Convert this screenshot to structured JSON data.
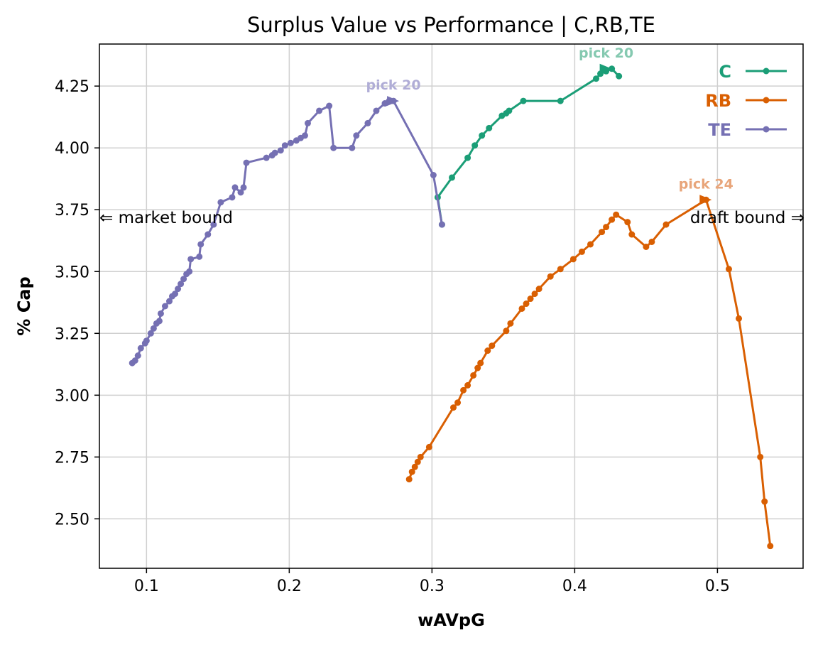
{
  "chart_data": {
    "type": "line",
    "title": "Surplus Value vs Performance | C,RB,TE",
    "xlabel": "wAVpG",
    "ylabel": "% Cap",
    "xlim": [
      0.067,
      0.56
    ],
    "ylim": [
      2.3,
      4.42
    ],
    "xticks": [
      0.1,
      0.2,
      0.3,
      0.4,
      0.5
    ],
    "xtick_labels": [
      "0.1",
      "0.2",
      "0.3",
      "0.4",
      "0.5"
    ],
    "yticks": [
      2.5,
      2.75,
      3.0,
      3.25,
      3.5,
      3.75,
      4.0,
      4.25
    ],
    "ytick_labels": [
      "2.50",
      "2.75",
      "3.00",
      "3.25",
      "3.50",
      "3.75",
      "4.00",
      "4.25"
    ],
    "grid": true,
    "legend_position": "top-right",
    "left_bound_label": "⇐ market bound",
    "right_bound_label": "draft bound ⇒",
    "series": [
      {
        "name": "C",
        "color": "#1b9e77",
        "x": [
          0.307,
          0.304,
          0.314,
          0.325,
          0.33,
          0.335,
          0.34,
          0.349,
          0.352,
          0.354,
          0.364,
          0.39,
          0.415,
          0.418,
          0.422,
          0.426,
          0.431
        ],
        "y": [
          3.69,
          3.8,
          3.88,
          3.96,
          4.01,
          4.05,
          4.08,
          4.13,
          4.14,
          4.15,
          4.19,
          4.19,
          4.28,
          4.3,
          4.31,
          4.32,
          4.29
        ],
        "pick_label": "pick 20",
        "pick_x": 0.422,
        "pick_y": 4.32
      },
      {
        "name": "RB",
        "color": "#d95f02",
        "x": [
          0.284,
          0.286,
          0.288,
          0.29,
          0.292,
          0.298,
          0.315,
          0.318,
          0.322,
          0.325,
          0.329,
          0.332,
          0.334,
          0.339,
          0.342,
          0.352,
          0.355,
          0.363,
          0.366,
          0.369,
          0.372,
          0.375,
          0.383,
          0.39,
          0.399,
          0.405,
          0.411,
          0.419,
          0.422,
          0.426,
          0.429,
          0.437,
          0.44,
          0.45,
          0.454,
          0.464,
          0.492,
          0.508,
          0.515,
          0.53,
          0.533,
          0.537
        ],
        "y": [
          2.66,
          2.69,
          2.71,
          2.73,
          2.75,
          2.79,
          2.95,
          2.97,
          3.02,
          3.04,
          3.08,
          3.11,
          3.13,
          3.18,
          3.2,
          3.26,
          3.29,
          3.35,
          3.37,
          3.39,
          3.41,
          3.43,
          3.48,
          3.51,
          3.55,
          3.58,
          3.61,
          3.66,
          3.68,
          3.71,
          3.73,
          3.7,
          3.65,
          3.6,
          3.62,
          3.69,
          3.79,
          3.51,
          3.31,
          2.75,
          2.57,
          2.39
        ],
        "pick_label": "pick 24",
        "pick_x": 0.492,
        "pick_y": 3.79
      },
      {
        "name": "TE",
        "color": "#7570b3",
        "x": [
          0.09,
          0.092,
          0.094,
          0.096,
          0.099,
          0.1,
          0.103,
          0.105,
          0.107,
          0.109,
          0.11,
          0.113,
          0.116,
          0.118,
          0.12,
          0.122,
          0.124,
          0.126,
          0.128,
          0.13,
          0.131,
          0.137,
          0.138,
          0.143,
          0.147,
          0.152,
          0.16,
          0.162,
          0.166,
          0.168,
          0.17,
          0.184,
          0.188,
          0.19,
          0.194,
          0.197,
          0.201,
          0.205,
          0.208,
          0.211,
          0.213,
          0.221,
          0.228,
          0.231,
          0.244,
          0.247,
          0.255,
          0.261,
          0.267,
          0.27,
          0.273,
          0.301,
          0.307
        ],
        "y": [
          3.13,
          3.14,
          3.16,
          3.19,
          3.21,
          3.22,
          3.25,
          3.27,
          3.29,
          3.3,
          3.33,
          3.36,
          3.38,
          3.4,
          3.41,
          3.43,
          3.45,
          3.47,
          3.49,
          3.5,
          3.55,
          3.56,
          3.61,
          3.65,
          3.69,
          3.78,
          3.8,
          3.84,
          3.82,
          3.84,
          3.94,
          3.96,
          3.97,
          3.98,
          3.99,
          4.01,
          4.02,
          4.03,
          4.04,
          4.05,
          4.1,
          4.15,
          4.17,
          4.0,
          4.0,
          4.05,
          4.1,
          4.15,
          4.18,
          4.19,
          4.19,
          3.89,
          3.69
        ],
        "pick_label": "pick 20",
        "pick_x": 0.273,
        "pick_y": 4.19
      }
    ]
  }
}
